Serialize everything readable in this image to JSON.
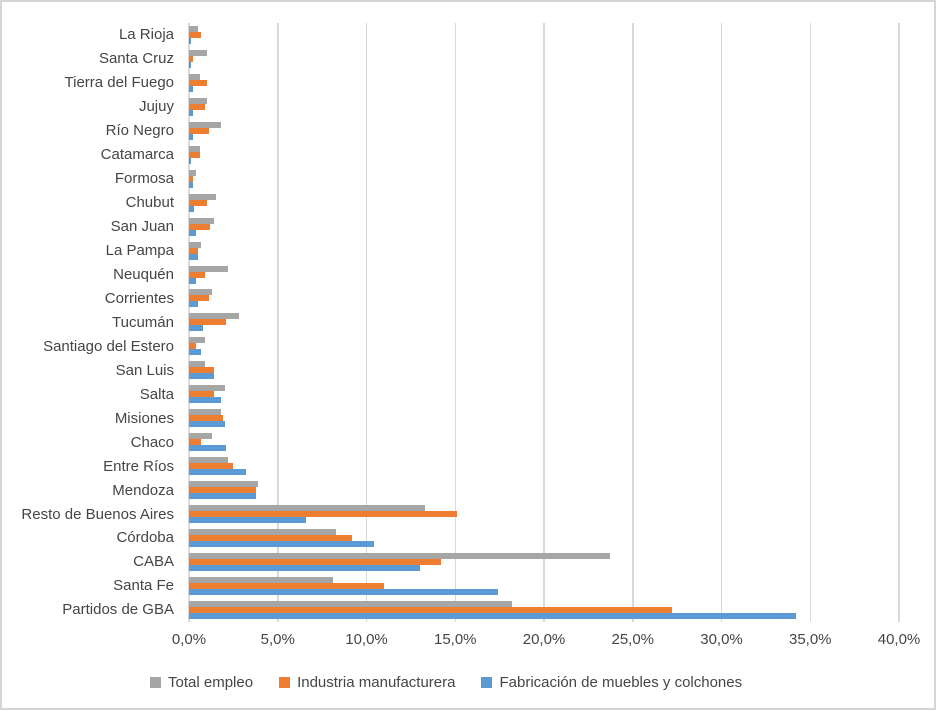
{
  "chart_data": {
    "type": "bar",
    "orientation": "horizontal",
    "title": "",
    "xlabel": "",
    "ylabel": "",
    "grid": true,
    "legend_position": "bottom",
    "x_axis": {
      "min": 0,
      "max": 40,
      "step": 5,
      "tick_labels": [
        "0,0%",
        "5,0%",
        "10,0%",
        "15,0%",
        "20,0%",
        "25,0%",
        "30,0%",
        "35,0%",
        "40,0%"
      ],
      "unit": "percent"
    },
    "categories": [
      "La Rioja",
      "Santa Cruz",
      "Tierra del Fuego",
      "Jujuy",
      "Río Negro",
      "Catamarca",
      "Formosa",
      "Chubut",
      "San Juan",
      "La Pampa",
      "Neuquén",
      "Corrientes",
      "Tucumán",
      "Santiago del Estero",
      "San Luis",
      "Salta",
      "Misiones",
      "Chaco",
      "Entre Ríos",
      "Mendoza",
      "Resto de Buenos Aires",
      "Córdoba",
      "CABA",
      "Santa Fe",
      "Partidos de GBA"
    ],
    "series": [
      {
        "name": "Total empleo",
        "color": "#a6a6a6",
        "values": [
          0.5,
          1.0,
          0.6,
          1.0,
          1.8,
          0.6,
          0.4,
          1.5,
          1.4,
          0.7,
          2.2,
          1.3,
          2.8,
          0.9,
          0.9,
          2.0,
          1.8,
          1.3,
          2.2,
          3.9,
          13.3,
          8.3,
          23.7,
          8.1,
          18.2
        ]
      },
      {
        "name": "Industria manufacturera",
        "color": "#ed7d31",
        "values": [
          0.7,
          0.2,
          1.0,
          0.9,
          1.1,
          0.6,
          0.2,
          1.0,
          1.2,
          0.5,
          0.9,
          1.1,
          2.1,
          0.4,
          1.4,
          1.4,
          1.9,
          0.7,
          2.5,
          3.8,
          15.1,
          9.2,
          14.2,
          11.0,
          27.2
        ]
      },
      {
        "name": "Fabricación de muebles y colchones",
        "color": "#5b9bd5",
        "values": [
          0.1,
          0.1,
          0.2,
          0.2,
          0.2,
          0.1,
          0.2,
          0.3,
          0.4,
          0.5,
          0.4,
          0.5,
          0.8,
          0.7,
          1.4,
          1.8,
          2.0,
          2.1,
          3.2,
          3.8,
          6.6,
          10.4,
          13.0,
          17.4,
          34.2
        ]
      }
    ]
  },
  "style": {
    "gridline_color": "#d9d9d9",
    "text_color": "#454545",
    "background": "#ffffff",
    "border_color": "#d4d4d4"
  }
}
